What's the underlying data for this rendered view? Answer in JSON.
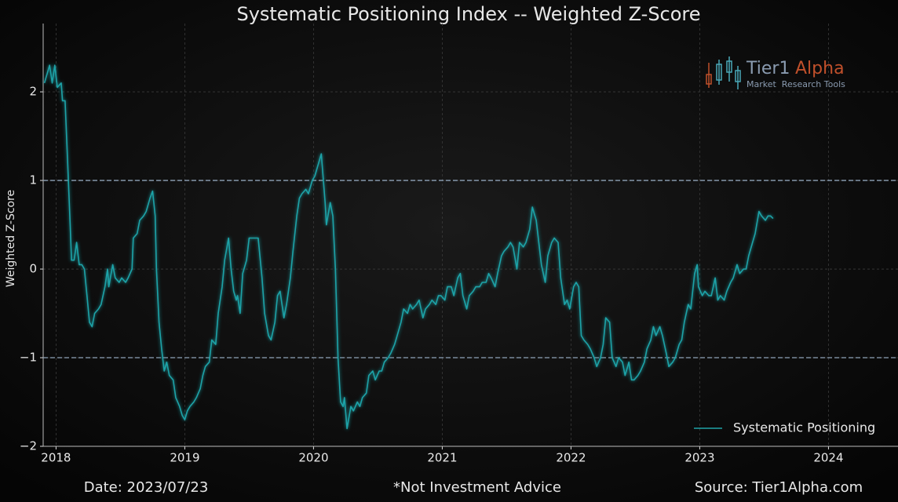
{
  "chart_data": {
    "type": "line",
    "title": "Systematic Positioning Index -- Weighted Z-Score",
    "y_label": "Weighted Z-Score",
    "x": [
      2017.91,
      2017.95,
      2017.97,
      2017.99,
      2018.01,
      2018.04,
      2018.05,
      2018.07,
      2018.09,
      2018.11,
      2018.12,
      2018.14,
      2018.16,
      2018.18,
      2018.2,
      2018.22,
      2018.24,
      2018.26,
      2018.28,
      2018.3,
      2018.33,
      2018.35,
      2018.38,
      2018.4,
      2018.41,
      2018.44,
      2018.46,
      2018.49,
      2018.51,
      2018.54,
      2018.56,
      2018.59,
      2018.6,
      2018.63,
      2018.65,
      2018.68,
      2018.7,
      2018.73,
      2018.75,
      2018.77,
      2018.78,
      2018.8,
      2018.82,
      2018.84,
      2018.86,
      2018.88,
      2018.91,
      2018.93,
      2018.96,
      2018.98,
      2019.0,
      2019.02,
      2019.04,
      2019.07,
      2019.09,
      2019.12,
      2019.14,
      2019.16,
      2019.19,
      2019.21,
      2019.24,
      2019.26,
      2019.29,
      2019.31,
      2019.34,
      2019.36,
      2019.38,
      2019.4,
      2019.41,
      2019.43,
      2019.45,
      2019.48,
      2019.5,
      2019.52,
      2019.55,
      2019.57,
      2019.6,
      2019.62,
      2019.65,
      2019.67,
      2019.7,
      2019.72,
      2019.74,
      2019.77,
      2019.79,
      2019.82,
      2019.84,
      2019.87,
      2019.89,
      2019.91,
      2019.94,
      2019.96,
      2019.99,
      2020.01,
      2020.04,
      2020.06,
      2020.09,
      2020.1,
      2020.13,
      2020.15,
      2020.17,
      2020.19,
      2020.21,
      2020.23,
      2020.24,
      2020.26,
      2020.29,
      2020.31,
      2020.34,
      2020.36,
      2020.38,
      2020.41,
      2020.43,
      2020.46,
      2020.48,
      2020.51,
      2020.53,
      2020.55,
      2020.58,
      2020.6,
      2020.63,
      2020.65,
      2020.68,
      2020.7,
      2020.73,
      2020.75,
      2020.77,
      2020.8,
      2020.82,
      2020.85,
      2020.87,
      2020.9,
      2020.92,
      2020.95,
      2020.97,
      2020.99,
      2021.02,
      2021.04,
      2021.07,
      2021.09,
      2021.12,
      2021.14,
      2021.16,
      2021.19,
      2021.21,
      2021.24,
      2021.26,
      2021.29,
      2021.31,
      2021.34,
      2021.36,
      2021.38,
      2021.41,
      2021.43,
      2021.46,
      2021.48,
      2021.51,
      2021.53,
      2021.55,
      2021.58,
      2021.6,
      2021.63,
      2021.65,
      2021.68,
      2021.7,
      2021.73,
      2021.75,
      2021.77,
      2021.8,
      2021.82,
      2021.85,
      2021.87,
      2021.9,
      2021.92,
      2021.95,
      2021.97,
      2021.99,
      2022.02,
      2022.04,
      2022.06,
      2022.08,
      2022.1,
      2022.13,
      2022.15,
      2022.18,
      2022.2,
      2022.23,
      2022.25,
      2022.27,
      2022.3,
      2022.32,
      2022.35,
      2022.37,
      2022.4,
      2022.42,
      2022.45,
      2022.47,
      2022.49,
      2022.52,
      2022.54,
      2022.57,
      2022.59,
      2022.62,
      2022.64,
      2022.66,
      2022.69,
      2022.71,
      2022.74,
      2022.76,
      2022.79,
      2022.81,
      2022.84,
      2022.86,
      2022.88,
      2022.91,
      2022.93,
      2022.96,
      2022.98,
      2022.99,
      2023.02,
      2023.04,
      2023.07,
      2023.09,
      2023.12,
      2023.14,
      2023.16,
      2023.19,
      2023.21,
      2023.24,
      2023.26,
      2023.29,
      2023.31,
      2023.34,
      2023.36,
      2023.38,
      2023.41,
      2023.43,
      2023.46,
      2023.48,
      2023.51,
      2023.53,
      2023.55,
      2023.57
    ],
    "series": [
      {
        "name": "Systematic Positioning",
        "color": "#1fa3a8",
        "values": [
          2.1,
          2.3,
          2.1,
          2.3,
          2.05,
          2.1,
          1.9,
          1.9,
          1.2,
          0.5,
          0.1,
          0.1,
          0.3,
          0.05,
          0.05,
          0.0,
          -0.3,
          -0.6,
          -0.65,
          -0.5,
          -0.45,
          -0.4,
          -0.2,
          0.0,
          -0.2,
          0.05,
          -0.1,
          -0.15,
          -0.1,
          -0.15,
          -0.1,
          0.0,
          0.35,
          0.4,
          0.55,
          0.6,
          0.65,
          0.8,
          0.88,
          0.6,
          0.0,
          -0.6,
          -0.9,
          -1.15,
          -1.05,
          -1.2,
          -1.25,
          -1.45,
          -1.55,
          -1.65,
          -1.7,
          -1.6,
          -1.55,
          -1.5,
          -1.45,
          -1.35,
          -1.2,
          -1.1,
          -1.05,
          -0.8,
          -0.85,
          -0.5,
          -0.2,
          0.1,
          0.35,
          0.0,
          -0.25,
          -0.35,
          -0.3,
          -0.5,
          -0.05,
          0.1,
          0.35,
          0.35,
          0.35,
          0.35,
          -0.1,
          -0.5,
          -0.75,
          -0.8,
          -0.6,
          -0.3,
          -0.25,
          -0.55,
          -0.4,
          -0.1,
          0.2,
          0.6,
          0.8,
          0.85,
          0.9,
          0.85,
          1.0,
          1.05,
          1.2,
          1.3,
          0.75,
          0.5,
          0.75,
          0.6,
          0.0,
          -1.0,
          -1.5,
          -1.55,
          -1.45,
          -1.8,
          -1.55,
          -1.6,
          -1.5,
          -1.55,
          -1.45,
          -1.4,
          -1.2,
          -1.15,
          -1.25,
          -1.15,
          -1.15,
          -1.05,
          -1.0,
          -0.95,
          -0.85,
          -0.75,
          -0.6,
          -0.45,
          -0.5,
          -0.4,
          -0.45,
          -0.4,
          -0.35,
          -0.55,
          -0.45,
          -0.4,
          -0.35,
          -0.4,
          -0.3,
          -0.3,
          -0.35,
          -0.2,
          -0.2,
          -0.3,
          -0.1,
          -0.05,
          -0.3,
          -0.45,
          -0.3,
          -0.25,
          -0.2,
          -0.2,
          -0.15,
          -0.15,
          -0.05,
          -0.1,
          -0.2,
          -0.05,
          0.15,
          0.2,
          0.25,
          0.3,
          0.25,
          0.0,
          0.3,
          0.25,
          0.3,
          0.45,
          0.7,
          0.55,
          0.3,
          0.05,
          -0.15,
          0.15,
          0.3,
          0.35,
          0.3,
          -0.1,
          -0.4,
          -0.35,
          -0.45,
          -0.2,
          -0.15,
          -0.2,
          -0.75,
          -0.8,
          -0.85,
          -0.9,
          -1.0,
          -1.1,
          -1.0,
          -0.85,
          -0.55,
          -0.6,
          -1.0,
          -1.1,
          -1.0,
          -1.05,
          -1.2,
          -1.05,
          -1.25,
          -1.25,
          -1.2,
          -1.15,
          -1.05,
          -0.9,
          -0.8,
          -0.65,
          -0.75,
          -0.65,
          -0.75,
          -0.95,
          -1.1,
          -1.05,
          -1.0,
          -0.85,
          -0.8,
          -0.6,
          -0.4,
          -0.45,
          -0.05,
          0.05,
          -0.2,
          -0.3,
          -0.25,
          -0.3,
          -0.3,
          -0.1,
          -0.35,
          -0.3,
          -0.35,
          -0.25,
          -0.15,
          -0.1,
          0.05,
          -0.05,
          0.0,
          0.0,
          0.15,
          0.3,
          0.4,
          0.65,
          0.6,
          0.55,
          0.6,
          0.6,
          0.57
        ]
      }
    ],
    "xlim": [
      2017.9,
      2024.54
    ],
    "xticks": [
      2018,
      2019,
      2020,
      2021,
      2022,
      2023,
      2024
    ],
    "ylim": [
      -2,
      2.7
    ],
    "yticks": [
      {
        "value": -2,
        "label": "−2"
      },
      {
        "value": -1,
        "label": "−1"
      },
      0,
      1,
      2
    ],
    "hlines": [
      1,
      -1
    ],
    "hline_color": "#8fa3b8",
    "grid": true,
    "legend": "lower right"
  },
  "logo": {
    "name_a": "Tier1",
    "name_b": "Alpha",
    "tagline": "Market  Research Tools"
  },
  "footer": {
    "date": "Date: 2023/07/23",
    "disclaimer": "*Not Investment Advice",
    "source": "Source: Tier1Alpha.com"
  }
}
